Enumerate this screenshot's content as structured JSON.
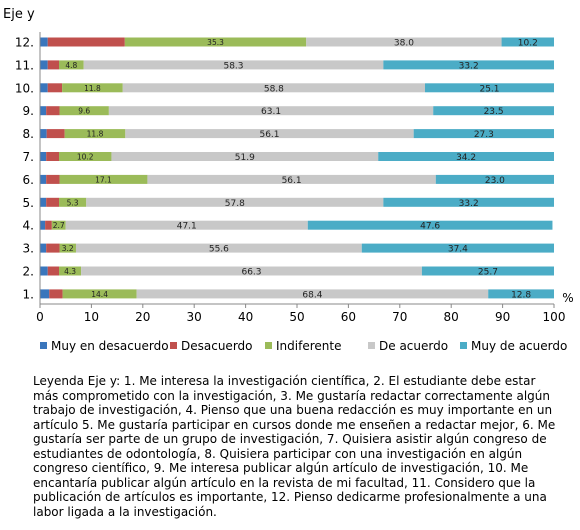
{
  "chart_data": {
    "type": "bar",
    "orientation": "horizontal",
    "stacked": true,
    "ylabel": "Eje y",
    "xlabel": "%",
    "xlim": [
      0,
      100
    ],
    "xticks": [
      "0",
      "10",
      "20",
      "30",
      "40",
      "50",
      "60",
      "70",
      "80",
      "90",
      "100"
    ],
    "categories": [
      "1.",
      "2.",
      "3.",
      "4.",
      "5.",
      "6.",
      "7.",
      "8.",
      "9.",
      "10.",
      "11.",
      "12."
    ],
    "series": [
      {
        "name": "Muy en desacuerdo",
        "color": "#3a76bc",
        "values": [
          1.8,
          1.5,
          1.2,
          1.0,
          1.2,
          1.2,
          1.2,
          1.3,
          1.2,
          1.5,
          1.5,
          1.5
        ],
        "labels": [
          "",
          "",
          "",
          "",
          "",
          "",
          "",
          "",
          "",
          "",
          "",
          ""
        ]
      },
      {
        "name": "Desacuerdo",
        "color": "#c0504d",
        "values": [
          2.6,
          2.2,
          2.6,
          1.3,
          2.5,
          2.6,
          2.5,
          3.5,
          2.6,
          2.8,
          2.2,
          15.0
        ],
        "labels": [
          "",
          "",
          "",
          "",
          "",
          "",
          "",
          "",
          "",
          "",
          "",
          ""
        ]
      },
      {
        "name": "Indiferente",
        "color": "#9bbb59",
        "values": [
          14.4,
          4.3,
          3.2,
          2.7,
          5.3,
          17.1,
          10.2,
          11.8,
          9.6,
          11.8,
          4.8,
          35.3
        ],
        "labels": [
          "14.4",
          "4.3",
          "3.2",
          "2.7",
          "5.3",
          "17.1",
          "10.2",
          "11.8",
          "9.6",
          "11.8",
          "4.8",
          "35.3"
        ]
      },
      {
        "name": "De acuerdo",
        "color": "#c8c8c8",
        "values": [
          68.4,
          66.3,
          55.6,
          47.1,
          57.8,
          56.1,
          51.9,
          56.1,
          63.1,
          58.8,
          58.3,
          38.0
        ],
        "labels": [
          "68.4",
          "66.3",
          "55.6",
          "47.1",
          "57.8",
          "56.1",
          "51.9",
          "56.1",
          "63.1",
          "58.8",
          "58.3",
          "38.0"
        ]
      },
      {
        "name": "Muy de acuerdo",
        "color": "#4bacc6",
        "values": [
          12.8,
          25.7,
          37.4,
          47.6,
          33.2,
          23.0,
          34.2,
          27.3,
          23.5,
          25.1,
          33.2,
          10.2
        ],
        "labels": [
          "12.8",
          "25.7",
          "37.4",
          "47.6",
          "33.2",
          "23.0",
          "34.2",
          "27.3",
          "23.5",
          "25.1",
          "33.2",
          "10.2"
        ]
      }
    ],
    "grid": false,
    "legend_position": "bottom"
  },
  "caption": "Leyenda Eje y: 1. Me interesa la investigación científica, 2. El estudiante debe estar más comprometido con la investigación, 3. Me gustaría redactar correctamente algún trabajo de investigación, 4. Pienso que una buena redacción es muy importante en un artículo 5. Me gustaría participar en cursos donde me enseñen a redactar mejor, 6. Me gustaría ser parte de un grupo de investigación, 7. Quisiera asistir algún congreso de estudiantes de odontología, 8. Quisiera participar con una investigación en algún congreso científico, 9. Me interesa publicar algún artículo de investigación, 10. Me encantaría publicar algún artículo en la revista de mi facultad, 11. Considero que la publicación de artículos es importante, 12. Pienso dedicarme profesionalmente a una labor ligada a la investigación."
}
